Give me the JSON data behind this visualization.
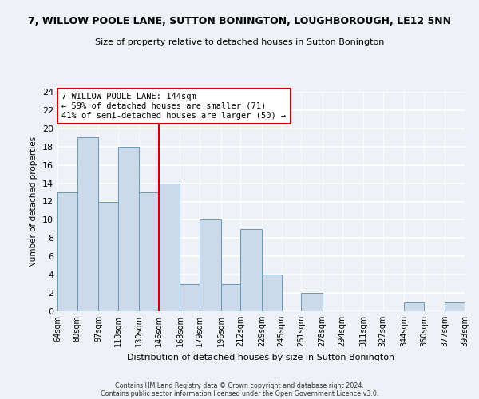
{
  "title_line1": "7, WILLOW POOLE LANE, SUTTON BONINGTON, LOUGHBOROUGH, LE12 5NN",
  "title_line2": "Size of property relative to detached houses in Sutton Bonington",
  "xlabel": "Distribution of detached houses by size in Sutton Bonington",
  "ylabel": "Number of detached properties",
  "bin_edges": [
    64,
    80,
    97,
    113,
    130,
    146,
    163,
    179,
    196,
    212,
    229,
    245,
    261,
    278,
    294,
    311,
    327,
    344,
    360,
    377,
    393
  ],
  "bin_labels": [
    "64sqm",
    "80sqm",
    "97sqm",
    "113sqm",
    "130sqm",
    "146sqm",
    "163sqm",
    "179sqm",
    "196sqm",
    "212sqm",
    "229sqm",
    "245sqm",
    "261sqm",
    "278sqm",
    "294sqm",
    "311sqm",
    "327sqm",
    "344sqm",
    "360sqm",
    "377sqm",
    "393sqm"
  ],
  "counts": [
    13,
    19,
    12,
    18,
    13,
    14,
    3,
    10,
    3,
    9,
    4,
    0,
    2,
    0,
    0,
    0,
    0,
    1,
    0,
    1
  ],
  "bar_color": "#ccd9e8",
  "bar_edge_color": "#6699bb",
  "vline_x": 146,
  "vline_color": "#cc0000",
  "annotation_title": "7 WILLOW POOLE LANE: 144sqm",
  "annotation_line1": "← 59% of detached houses are smaller (71)",
  "annotation_line2": "41% of semi-detached houses are larger (50) →",
  "annotation_box_color": "white",
  "annotation_box_edge": "#cc0000",
  "ylim": [
    0,
    24
  ],
  "yticks": [
    0,
    2,
    4,
    6,
    8,
    10,
    12,
    14,
    16,
    18,
    20,
    22,
    24
  ],
  "footnote1": "Contains HM Land Registry data © Crown copyright and database right 2024.",
  "footnote2": "Contains public sector information licensed under the Open Government Licence v3.0.",
  "background_color": "#eef2f7"
}
